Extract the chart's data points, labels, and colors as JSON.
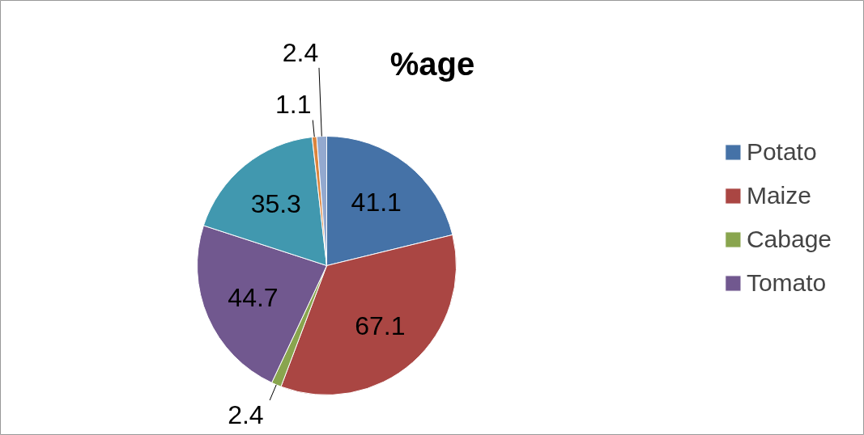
{
  "chart_data": {
    "type": "pie",
    "title": "%age",
    "categories": [
      "Potato",
      "Maize",
      "Cabage",
      "Tomato",
      null,
      null,
      null
    ],
    "values": [
      41.1,
      67.1,
      2.4,
      44.7,
      35.3,
      1.1,
      2.4
    ],
    "colors": [
      "#4572a7",
      "#aa4643",
      "#89a54e",
      "#71588f",
      "#4198af",
      "#db843d",
      "#93a9cf"
    ],
    "data_labels": true,
    "legend": "right"
  }
}
